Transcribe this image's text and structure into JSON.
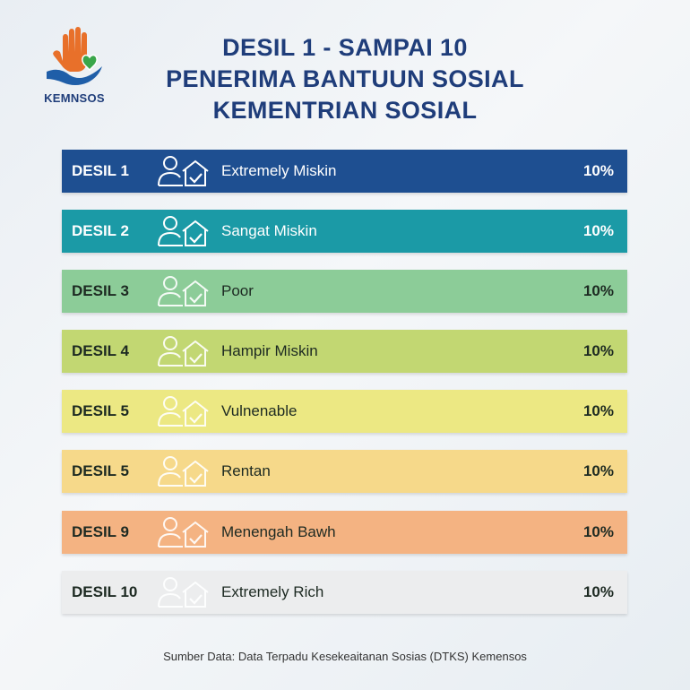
{
  "logo": {
    "text": "KEMNSOS"
  },
  "title": {
    "line1": "DESIL 1 - SAMPAI 10",
    "line2": "PENERIMA BANTUUN SOSIAL",
    "line3": "KEMENTRIAN SOSIAL"
  },
  "rows": [
    {
      "code": "DESIL 1",
      "label": "Extremely Miskin",
      "percent": "10%",
      "bg": "#1e4f91",
      "fg": "#ffffff"
    },
    {
      "code": "DESIL 2",
      "label": "Sangat Miskin",
      "percent": "10%",
      "bg": "#1b9aa6",
      "fg": "#ffffff"
    },
    {
      "code": "DESIL 3",
      "label": "Poor",
      "percent": "10%",
      "bg": "#8ccc98",
      "fg": "#1d2a22"
    },
    {
      "code": "DESIL 4",
      "label": "Hampir Miskin",
      "percent": "10%",
      "bg": "#c2d772",
      "fg": "#1d2a22"
    },
    {
      "code": "DESIL 5",
      "label": "Vulnenable",
      "percent": "10%",
      "bg": "#ece883",
      "fg": "#1d2a22"
    },
    {
      "code": "DESIL 5",
      "label": "Rentan",
      "percent": "10%",
      "bg": "#f6d98a",
      "fg": "#1d2a22"
    },
    {
      "code": "DESIL 9",
      "label": "Menengah Bawh",
      "percent": "10%",
      "bg": "#f4b382",
      "fg": "#1d2a22"
    },
    {
      "code": "DESIL 10",
      "label": "Extremely Rich",
      "percent": "10%",
      "bg": "#ecedee",
      "fg": "#1d2a22"
    }
  ],
  "source": "Sumber Data: Data Terpadu Kesekeaitanan Sosias (DTKS) Kemensos",
  "icons": {
    "logo": "hand-heart-icon",
    "row": "people-house-check-icon"
  }
}
